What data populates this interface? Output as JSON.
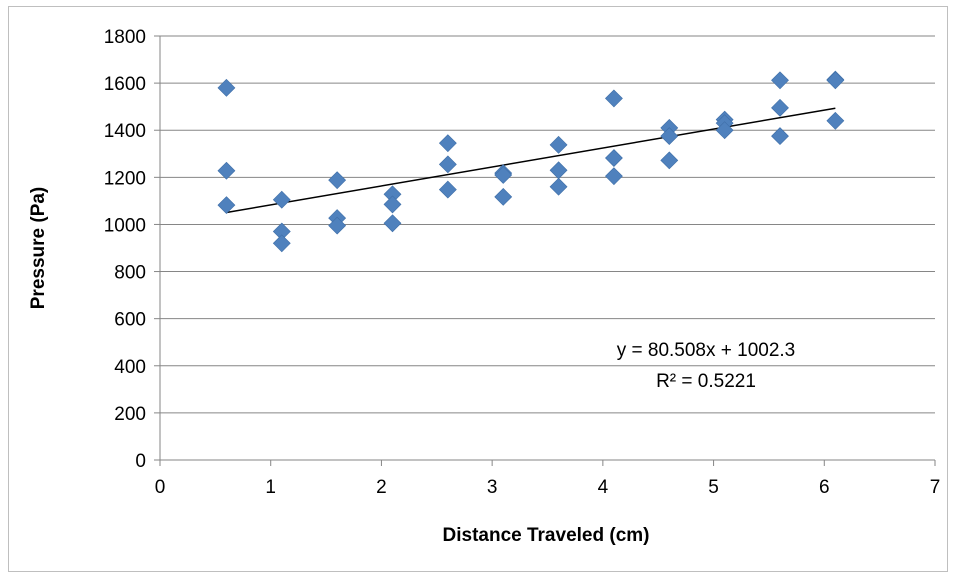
{
  "chart_data": {
    "type": "scatter",
    "title": "",
    "xlabel": "Distance Traveled (cm)",
    "ylabel": "Pressure (Pa)",
    "xlim": [
      0,
      7
    ],
    "ylim": [
      0,
      1800
    ],
    "x_ticks": [
      0,
      1,
      2,
      3,
      4,
      5,
      6,
      7
    ],
    "y_ticks": [
      0,
      200,
      400,
      600,
      800,
      1000,
      1200,
      1400,
      1600,
      1800
    ],
    "grid": "horizontal",
    "legend": "none",
    "marker": "diamond",
    "colors": {
      "marker": "#4f81bd",
      "trendline": "#000000",
      "grid": "#868686"
    },
    "series": [
      {
        "points": [
          [
            0.6,
            1580
          ],
          [
            0.6,
            1228
          ],
          [
            0.6,
            1082
          ],
          [
            1.1,
            1105
          ],
          [
            1.1,
            970
          ],
          [
            1.1,
            920
          ],
          [
            1.6,
            1188
          ],
          [
            1.6,
            1027
          ],
          [
            1.6,
            995
          ],
          [
            2.1,
            1128
          ],
          [
            2.1,
            1085
          ],
          [
            2.1,
            1005
          ],
          [
            2.6,
            1345
          ],
          [
            2.6,
            1255
          ],
          [
            2.6,
            1148
          ],
          [
            3.1,
            1218
          ],
          [
            3.1,
            1210
          ],
          [
            3.1,
            1117
          ],
          [
            3.6,
            1338
          ],
          [
            3.6,
            1230
          ],
          [
            3.6,
            1160
          ],
          [
            4.1,
            1535
          ],
          [
            4.1,
            1282
          ],
          [
            4.1,
            1205
          ],
          [
            4.6,
            1410
          ],
          [
            4.6,
            1375
          ],
          [
            4.6,
            1272
          ],
          [
            5.1,
            1445
          ],
          [
            5.1,
            1430
          ],
          [
            5.1,
            1400
          ],
          [
            5.6,
            1612
          ],
          [
            5.6,
            1495
          ],
          [
            5.6,
            1375
          ],
          [
            6.1,
            1615
          ],
          [
            6.1,
            1612
          ],
          [
            6.1,
            1440
          ]
        ]
      }
    ],
    "trendline": {
      "slope": 80.508,
      "intercept": 1002.3,
      "x_range": [
        0.6,
        6.1
      ],
      "equation": "y = 80.508x + 1002.3",
      "r_squared": "R² = 0.5221"
    }
  }
}
